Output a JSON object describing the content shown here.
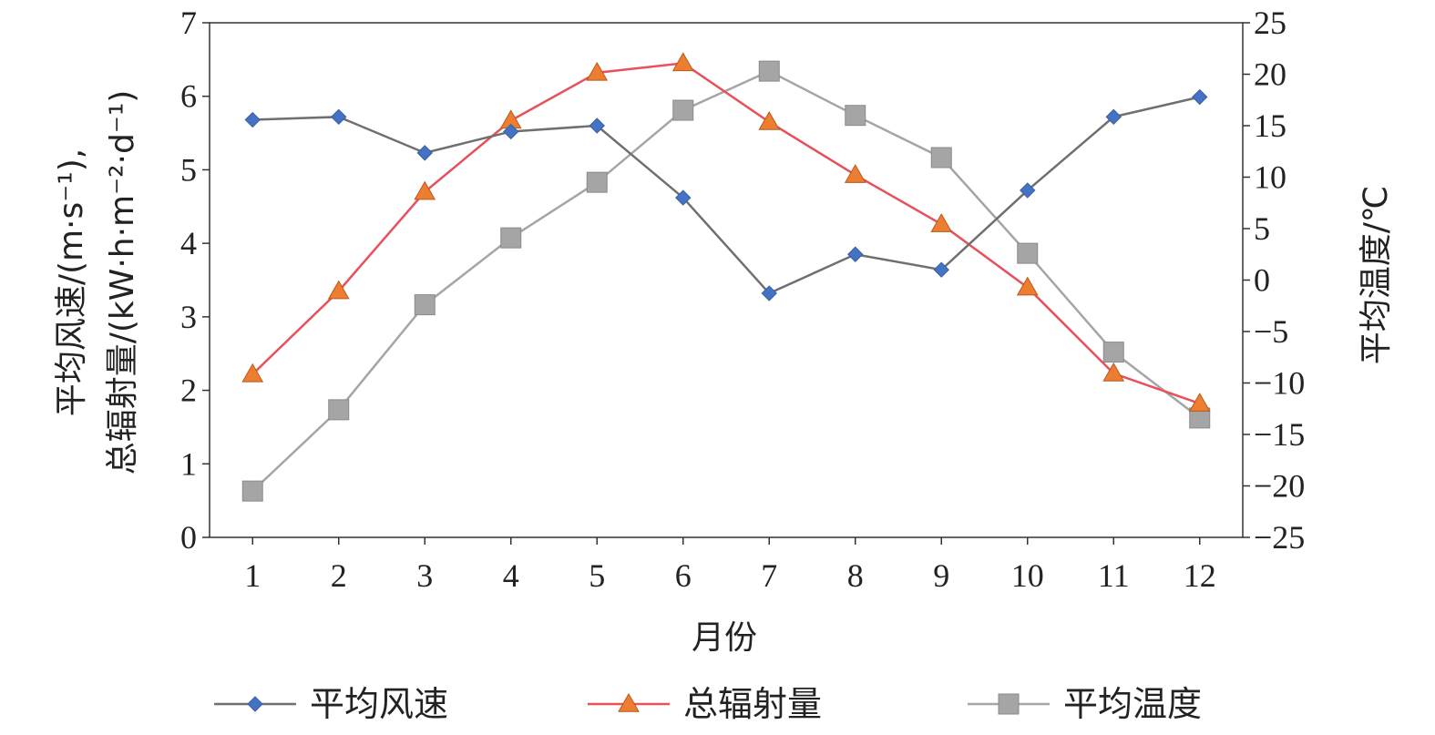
{
  "chart_data": {
    "type": "line",
    "x": [
      1,
      2,
      3,
      4,
      5,
      6,
      7,
      8,
      9,
      10,
      11,
      12
    ],
    "xlabel": "月份",
    "ylabel_left_line1": "平均风速/(m·s⁻¹),",
    "ylabel_left_line2": "总辐射量/(kW·h·m⁻²·d⁻¹)",
    "ylabel_right": "平均温度/℃",
    "ylim_left": [
      0,
      7
    ],
    "ylim_right": [
      -25,
      25
    ],
    "yticks_left": [
      "0",
      "1",
      "2",
      "3",
      "4",
      "5",
      "6",
      "7"
    ],
    "yticks_right": [
      "−25",
      "−20",
      "−15",
      "−10",
      "−5",
      "0",
      "5",
      "10",
      "15",
      "20",
      "25"
    ],
    "xticks": [
      "1",
      "2",
      "3",
      "4",
      "5",
      "6",
      "7",
      "8",
      "9",
      "10",
      "11",
      "12"
    ],
    "grid": false,
    "legend_position": "bottom",
    "series": [
      {
        "name": "平均风速",
        "axis": "left",
        "marker": "diamond",
        "color": "#4472C4",
        "line_color": "#6f6f6f",
        "values": [
          5.68,
          5.72,
          5.23,
          5.52,
          5.6,
          4.62,
          3.32,
          3.85,
          3.64,
          4.72,
          5.72,
          5.99
        ]
      },
      {
        "name": "总辐射量",
        "axis": "left",
        "marker": "triangle",
        "color": "#ED7D31",
        "line_color": "#E8505B",
        "values": [
          2.22,
          3.35,
          4.7,
          5.67,
          6.32,
          6.45,
          5.65,
          4.93,
          4.26,
          3.4,
          2.23,
          1.82
        ]
      },
      {
        "name": "平均温度",
        "axis": "right",
        "marker": "square",
        "color": "#A5A5A5",
        "line_color": "#A5A5A5",
        "values": [
          -20.5,
          -12.6,
          -2.4,
          4.1,
          9.5,
          16.5,
          20.3,
          16.0,
          11.9,
          2.6,
          -7.0,
          -13.4
        ]
      }
    ]
  }
}
